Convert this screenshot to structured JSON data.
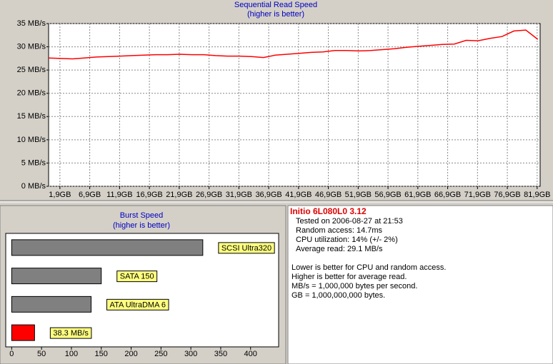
{
  "chart_data": [
    {
      "type": "line",
      "title": "Sequential Read Speed",
      "subtitle": "(higher is better)",
      "x": [
        0,
        2,
        4,
        6,
        8,
        10,
        12,
        14,
        16,
        18,
        20,
        22,
        24,
        26,
        28,
        30,
        32,
        34,
        36,
        38,
        40,
        42,
        44,
        46,
        48,
        50,
        52,
        54,
        56,
        58,
        60,
        62,
        64,
        66,
        68,
        70,
        72,
        74,
        76,
        78,
        80,
        82
      ],
      "values": [
        27.6,
        27.5,
        27.4,
        27.6,
        27.8,
        27.9,
        28.0,
        28.1,
        28.2,
        28.3,
        28.3,
        28.4,
        28.3,
        28.3,
        28.1,
        28.0,
        28.0,
        27.9,
        27.7,
        28.2,
        28.4,
        28.6,
        28.8,
        28.9,
        29.2,
        29.2,
        29.1,
        29.2,
        29.4,
        29.6,
        29.9,
        30.1,
        30.3,
        30.5,
        30.6,
        31.4,
        31.3,
        31.8,
        32.2,
        33.4,
        33.6,
        31.6
      ],
      "color": "#ff0000",
      "xlim": [
        0,
        82.4
      ],
      "ylim": [
        0,
        35
      ],
      "xticks": [
        {
          "value": 1.9,
          "label": "1,9GB"
        },
        {
          "value": 6.9,
          "label": "6,9GB"
        },
        {
          "value": 11.9,
          "label": "11,9GB"
        },
        {
          "value": 16.9,
          "label": "16,9GB"
        },
        {
          "value": 21.9,
          "label": "21,9GB"
        },
        {
          "value": 26.9,
          "label": "26,9GB"
        },
        {
          "value": 31.9,
          "label": "31,9GB"
        },
        {
          "value": 36.9,
          "label": "36,9GB"
        },
        {
          "value": 41.9,
          "label": "41,9GB"
        },
        {
          "value": 46.9,
          "label": "46,9GB"
        },
        {
          "value": 51.9,
          "label": "51,9GB"
        },
        {
          "value": 56.9,
          "label": "56,9GB"
        },
        {
          "value": 61.9,
          "label": "61,9GB"
        },
        {
          "value": 66.9,
          "label": "66,9GB"
        },
        {
          "value": 71.9,
          "label": "71,9GB"
        },
        {
          "value": 76.9,
          "label": "76,9GB"
        },
        {
          "value": 81.9,
          "label": "81,9GB"
        }
      ],
      "yticks": [
        {
          "value": 0,
          "label": "0 MB/s"
        },
        {
          "value": 5,
          "label": "5 MB/s"
        },
        {
          "value": 10,
          "label": "10 MB/s"
        },
        {
          "value": 15,
          "label": "15 MB/s"
        },
        {
          "value": 20,
          "label": "20 MB/s"
        },
        {
          "value": 25,
          "label": "25 MB/s"
        },
        {
          "value": 30,
          "label": "30 MB/s"
        },
        {
          "value": 35,
          "label": "35 MB/s"
        }
      ],
      "grid": true
    },
    {
      "type": "barh",
      "title": "Burst Speed",
      "subtitle": "(higher is better)",
      "categories": [
        "SCSI Ultra320",
        "SATA 150",
        "ATA UltraDMA 6",
        null
      ],
      "values": [
        320,
        150,
        133,
        38.3
      ],
      "value_labels": [
        null,
        null,
        null,
        "38.3 MB/s"
      ],
      "colors": [
        "#808080",
        "#808080",
        "#808080",
        "#ff0000"
      ],
      "xlim": [
        -10,
        447
      ],
      "xticks": [
        0,
        50,
        100,
        150,
        200,
        250,
        300,
        350,
        400
      ]
    }
  ],
  "info_panel": {
    "title": "Initio 6L080L0 3.12",
    "details": [
      "Tested on 2006-08-27 at 21:53",
      "Random access: 14.7ms",
      "CPU utilization: 14% (+/- 2%)",
      "Average read: 29.1 MB/s"
    ],
    "notes": [
      "Lower is better for CPU and random access.",
      "Higher is better for average read.",
      "MB/s = 1,000,000 bytes per second.",
      "GB = 1,000,000,000 bytes."
    ]
  }
}
